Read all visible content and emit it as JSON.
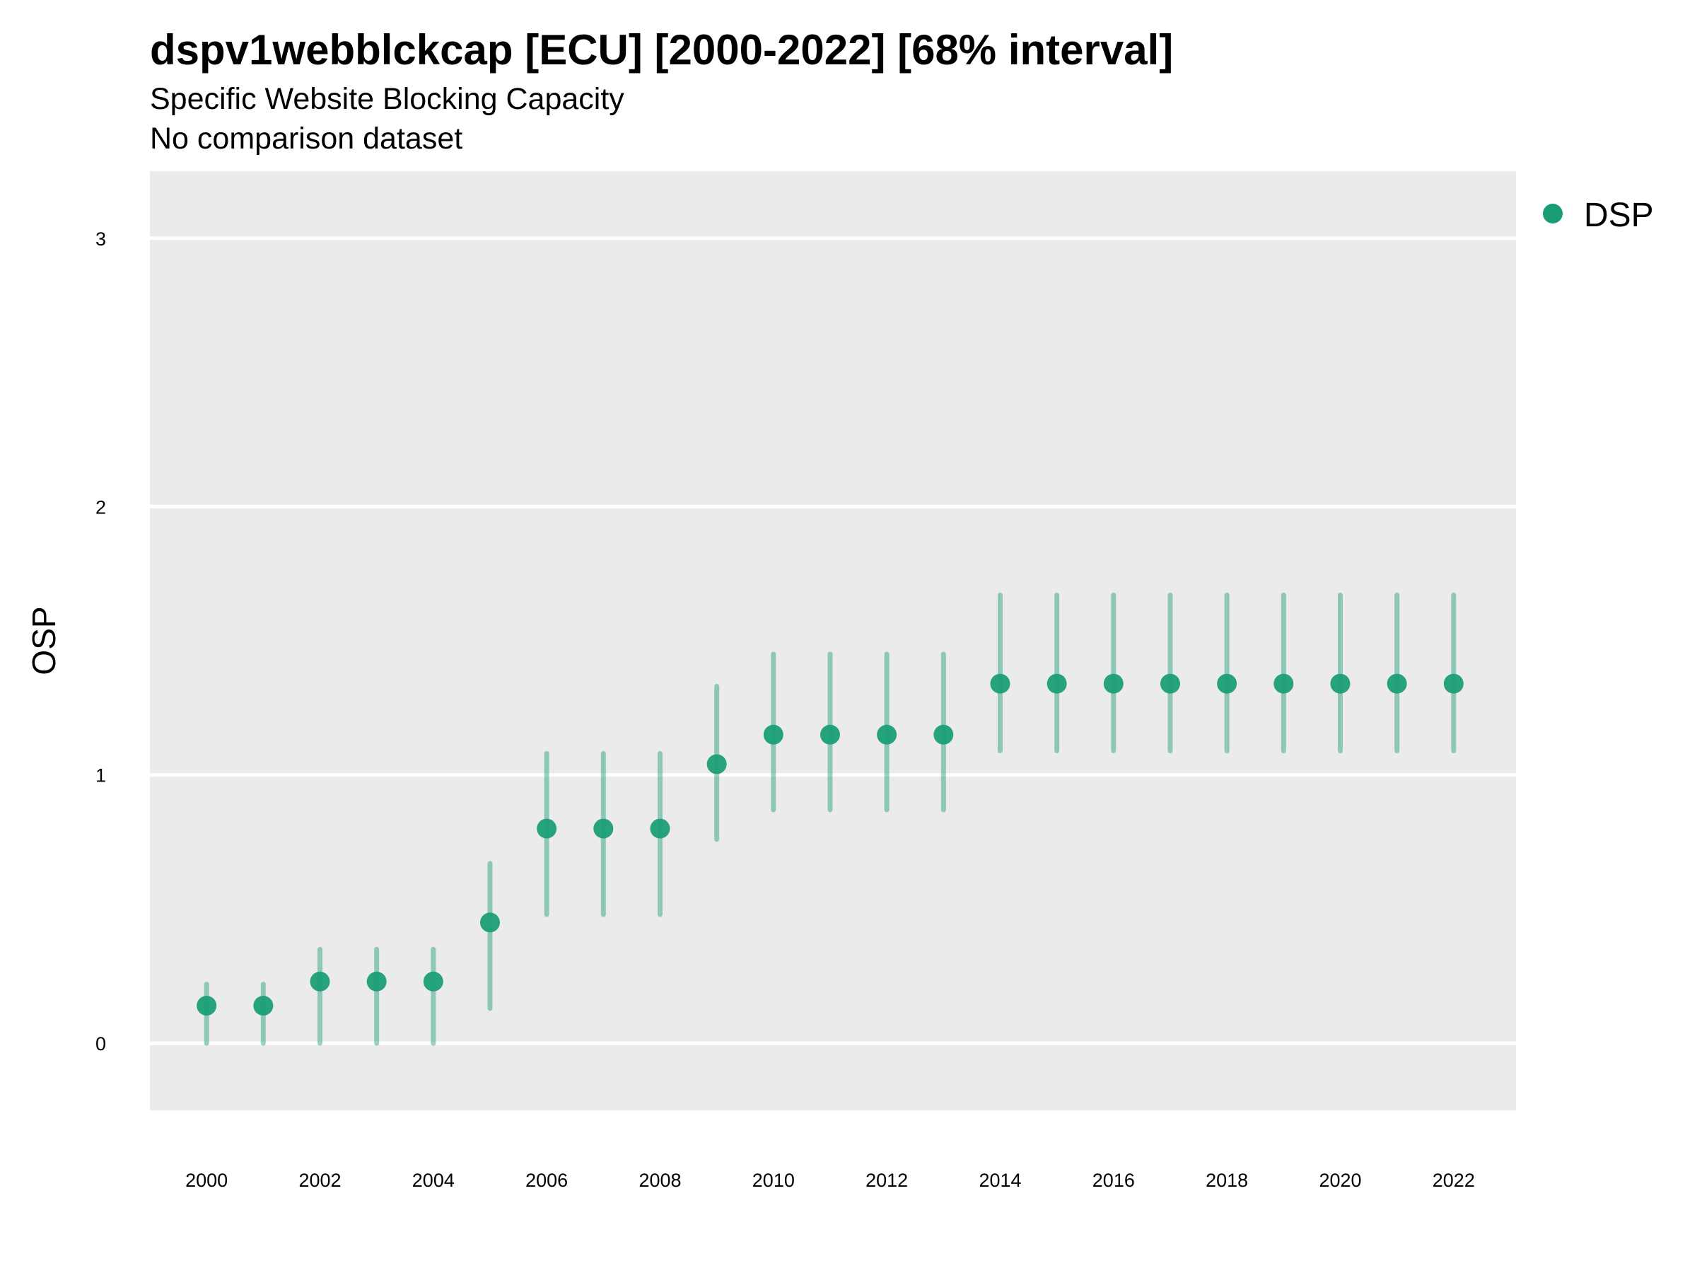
{
  "chart_data": {
    "type": "scatter",
    "title": "dspv1webblckcap [ECU] [2000-2022] [68% interval]",
    "subtitle": "Specific Website Blocking Capacity",
    "caption": "No comparison dataset",
    "xlabel": "",
    "ylabel": "OSP",
    "xlim": [
      1999,
      2023.1
    ],
    "ylim": [
      -0.25,
      3.25
    ],
    "x_ticks": [
      "2000",
      "2002",
      "2004",
      "2006",
      "2008",
      "2010",
      "2012",
      "2014",
      "2016",
      "2018",
      "2020",
      "2022"
    ],
    "y_ticks": [
      "0",
      "1",
      "2",
      "3"
    ],
    "grid": true,
    "legend_position": "top-right",
    "series": [
      {
        "name": "DSP",
        "color": "#1b9e77",
        "x": [
          2000,
          2001,
          2002,
          2003,
          2004,
          2005,
          2006,
          2007,
          2008,
          2009,
          2010,
          2011,
          2012,
          2013,
          2014,
          2015,
          2016,
          2017,
          2018,
          2019,
          2020,
          2021,
          2022
        ],
        "y": [
          0.14,
          0.14,
          0.23,
          0.23,
          0.23,
          0.45,
          0.8,
          0.8,
          0.8,
          1.04,
          1.15,
          1.15,
          1.15,
          1.15,
          1.34,
          1.34,
          1.34,
          1.34,
          1.34,
          1.34,
          1.34,
          1.34,
          1.34
        ],
        "lower": [
          0.0,
          0.0,
          0.0,
          0.0,
          0.0,
          0.13,
          0.48,
          0.48,
          0.48,
          0.76,
          0.87,
          0.87,
          0.87,
          0.87,
          1.09,
          1.09,
          1.09,
          1.09,
          1.09,
          1.09,
          1.09,
          1.09,
          1.09
        ],
        "upper": [
          0.22,
          0.22,
          0.35,
          0.35,
          0.35,
          0.67,
          1.08,
          1.08,
          1.08,
          1.33,
          1.45,
          1.45,
          1.45,
          1.45,
          1.67,
          1.67,
          1.67,
          1.67,
          1.67,
          1.67,
          1.67,
          1.67,
          1.67
        ]
      }
    ]
  }
}
